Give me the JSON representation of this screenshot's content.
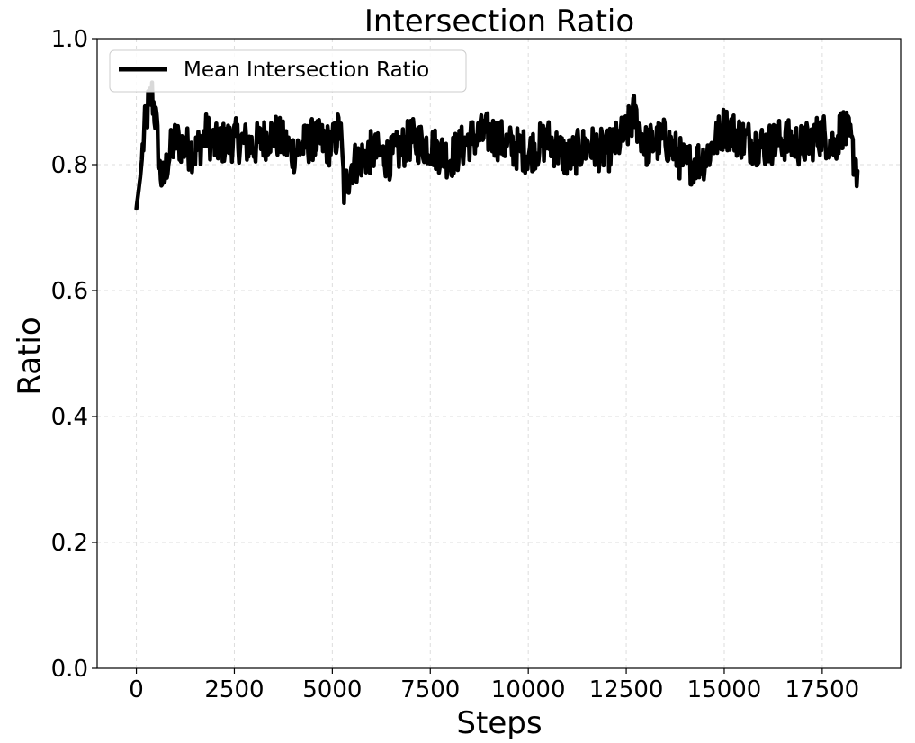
{
  "chart_data": {
    "type": "line",
    "title": "Intersection Ratio",
    "xlabel": "Steps",
    "ylabel": "Ratio",
    "xlim": [
      -1000,
      19500
    ],
    "ylim": [
      0.0,
      1.0
    ],
    "xticks": [
      0,
      2500,
      5000,
      7500,
      10000,
      12500,
      15000,
      17500
    ],
    "yticks": [
      0.0,
      0.2,
      0.4,
      0.6,
      0.8,
      1.0
    ],
    "xtick_labels": [
      "0",
      "2500",
      "5000",
      "7500",
      "10000",
      "12500",
      "15000",
      "17500"
    ],
    "ytick_labels": [
      "0.0",
      "0.2",
      "0.4",
      "0.6",
      "0.8",
      "1.0"
    ],
    "grid": true,
    "legend_position": "top-left",
    "series": [
      {
        "name": "Mean Intersection Ratio",
        "color": "#000000",
        "x": [
          0,
          100,
          200,
          300,
          400,
          500,
          600,
          700,
          800,
          1000,
          1200,
          1500,
          1800,
          2000,
          2500,
          3000,
          3500,
          4000,
          4500,
          5000,
          5200,
          5300,
          5500,
          6000,
          6500,
          7000,
          7500,
          8000,
          8500,
          9000,
          9500,
          10000,
          10500,
          11000,
          11500,
          12000,
          12500,
          12700,
          13000,
          13500,
          14000,
          14500,
          15000,
          15500,
          16000,
          16500,
          17000,
          17500,
          17800,
          18000,
          18200,
          18400
        ],
        "y": [
          0.73,
          0.78,
          0.85,
          0.89,
          0.91,
          0.87,
          0.79,
          0.77,
          0.81,
          0.84,
          0.83,
          0.82,
          0.85,
          0.83,
          0.84,
          0.83,
          0.85,
          0.82,
          0.84,
          0.83,
          0.86,
          0.76,
          0.8,
          0.82,
          0.81,
          0.84,
          0.83,
          0.81,
          0.84,
          0.85,
          0.83,
          0.82,
          0.84,
          0.81,
          0.83,
          0.82,
          0.85,
          0.88,
          0.83,
          0.84,
          0.8,
          0.81,
          0.86,
          0.84,
          0.83,
          0.84,
          0.83,
          0.85,
          0.83,
          0.86,
          0.84,
          0.79
        ]
      }
    ]
  }
}
